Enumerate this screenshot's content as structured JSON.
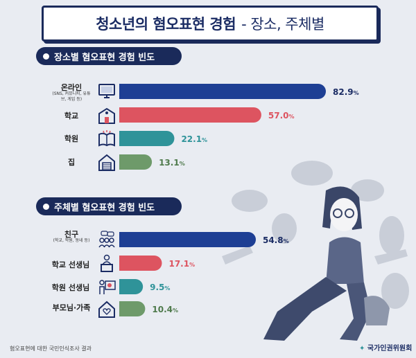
{
  "title": {
    "main": "청소년의 혐오표현 경험",
    "sub": "- 장소, 주체별"
  },
  "sections": [
    {
      "heading": "장소별 혐오표현 경험 빈도"
    },
    {
      "heading": "주체별 혐오표현 경험 빈도"
    }
  ],
  "chart_data": [
    {
      "type": "bar",
      "title": "장소별 혐오표현 경험 빈도",
      "categories": [
        "온라인",
        "학교",
        "학원",
        "집"
      ],
      "sublabels": [
        "(SNS, 커뮤니티, 유튜브, 게임 등)",
        "",
        "",
        ""
      ],
      "values": [
        82.9,
        57.0,
        22.1,
        13.1
      ],
      "value_labels": [
        "82.9",
        "57.0",
        "22.1",
        "13.1"
      ],
      "unit": "%",
      "colors": [
        "#1e3f94",
        "#dd5460",
        "#2f9399",
        "#6e9a6a"
      ],
      "xlim": [
        0,
        100
      ]
    },
    {
      "type": "bar",
      "title": "주체별 혐오표현 경험 빈도",
      "categories": [
        "친구",
        "학교 선생님",
        "학원 선생님",
        "부모님·가족"
      ],
      "sublabels": [
        "(학교, 학원, 동네 등)",
        "",
        "",
        ""
      ],
      "values": [
        54.8,
        17.1,
        9.5,
        10.4
      ],
      "value_labels": [
        "54.8",
        "17.1",
        "9.5",
        "10.4"
      ],
      "unit": "%",
      "colors": [
        "#1e3f94",
        "#dd5460",
        "#2f9399",
        "#6e9a6a"
      ],
      "xlim": [
        0,
        100
      ]
    }
  ],
  "icons": [
    "computer-icon",
    "school-icon",
    "book-icon",
    "house-icon",
    "people-icon",
    "teacher-icon",
    "tutor-icon",
    "family-home-icon"
  ],
  "footer": "혐오표현에 대한 국민인식조사 결과",
  "logo": "국가인권위원회"
}
